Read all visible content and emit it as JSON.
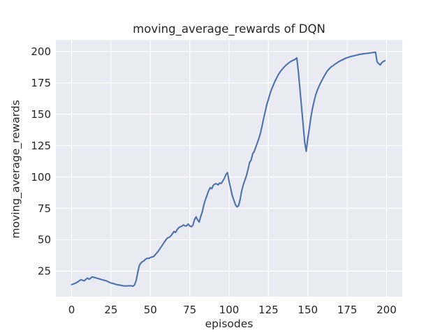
{
  "chart_data": {
    "type": "line",
    "title": "moving_average_rewards of DQN",
    "xlabel": "episodes",
    "ylabel": "moving_average_rewards",
    "legend": "none",
    "grid": true,
    "plot_bg": "#EAEAF2",
    "figure_bg": "#FFFFFF",
    "grid_color": "#FFFFFF",
    "text_color": "#262626",
    "xticks": [
      0,
      25,
      50,
      75,
      100,
      125,
      150,
      175,
      200
    ],
    "yticks": [
      25,
      50,
      75,
      100,
      125,
      150,
      175,
      200
    ],
    "xlim": [
      -10,
      210
    ],
    "ylim": [
      4.6,
      209.1
    ],
    "series": [
      {
        "name": "moving_average_rewards",
        "color": "#4C72B0",
        "x_start": 0,
        "x_step": 1,
        "values": [
          14.2,
          14.6,
          15.1,
          15.7,
          16.4,
          17.4,
          18.1,
          17.6,
          17.2,
          18.3,
          19.4,
          18.5,
          19.2,
          20.3,
          20.0,
          19.7,
          19.3,
          19.0,
          18.6,
          18.2,
          17.8,
          17.5,
          17.2,
          16.6,
          16.0,
          15.5,
          15.2,
          14.8,
          14.4,
          14.1,
          13.9,
          13.7,
          13.4,
          13.2,
          13.1,
          13.1,
          13.2,
          13.3,
          13.2,
          12.9,
          14.0,
          17.5,
          24.0,
          29.5,
          31.5,
          32.5,
          33.2,
          34.5,
          35.2,
          35.0,
          35.8,
          36.2,
          36.5,
          37.8,
          39.3,
          40.8,
          42.7,
          44.5,
          46.4,
          48.3,
          50.1,
          51.5,
          51.9,
          53.0,
          54.7,
          56.6,
          55.8,
          58.0,
          59.5,
          60.3,
          60.8,
          61.8,
          61.0,
          61.0,
          62.5,
          61.0,
          60.3,
          61.5,
          65.8,
          68.2,
          65.8,
          64.0,
          68.6,
          72.3,
          78.0,
          82.0,
          85.5,
          89.0,
          91.5,
          90.7,
          93.5,
          94.5,
          94.6,
          93.7,
          95.3,
          94.8,
          96.8,
          99.0,
          102.0,
          103.5,
          96.4,
          91.0,
          85.3,
          81.6,
          78.0,
          76.2,
          77.0,
          82.0,
          89.0,
          93.7,
          97.4,
          101.0,
          105.8,
          111.5,
          113.5,
          118.5,
          120.5,
          124.0,
          127.5,
          131.0,
          135.4,
          141.0,
          147.0,
          152.5,
          158.0,
          162.0,
          166.5,
          170.0,
          173.0,
          176.0,
          178.5,
          181.0,
          183.0,
          184.8,
          186.3,
          187.7,
          189.0,
          190.1,
          191.1,
          192.0,
          192.7,
          193.3,
          193.9,
          195.0,
          184.0,
          170.0,
          156.0,
          142.0,
          128.0,
          120.5,
          130.8,
          139.0,
          148.0,
          154.9,
          160.5,
          165.5,
          169.0,
          172.0,
          174.8,
          177.2,
          179.5,
          181.8,
          183.8,
          185.5,
          186.8,
          188.0,
          188.7,
          189.8,
          190.6,
          191.5,
          192.2,
          192.9,
          193.5,
          194.1,
          194.7,
          195.2,
          195.6,
          196.0,
          196.3,
          196.6,
          196.9,
          197.2,
          197.5,
          197.8,
          198.0,
          198.2,
          198.4,
          198.5,
          198.7,
          198.8,
          199.0,
          199.2,
          199.4,
          199.5,
          191.8,
          190.4,
          189.4,
          191.2,
          192.2,
          192.7
        ]
      }
    ]
  }
}
